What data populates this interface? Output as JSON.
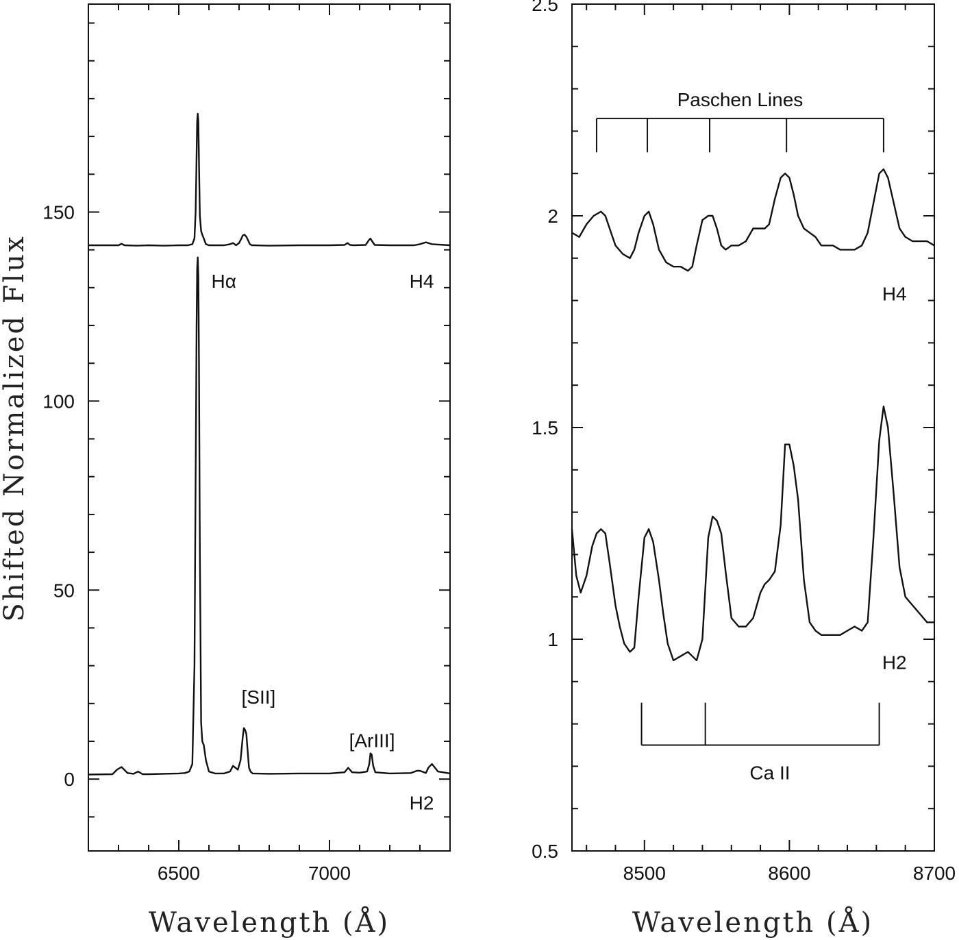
{
  "chart_data": [
    {
      "type": "line",
      "panel": "left",
      "ylabel": "Shifted Normalized Flux",
      "xlabel": "Wavelength (Å)",
      "xlim": [
        6200,
        7400
      ],
      "ylim": [
        -19,
        205
      ],
      "xticks": [
        6500,
        7000
      ],
      "xtick_labels": [
        "6500",
        "7000"
      ],
      "yticks": [
        0,
        50,
        100,
        150
      ],
      "ytick_labels": [
        "0",
        "50",
        "100",
        "150"
      ],
      "series": [
        {
          "name": "H4",
          "label": "H4",
          "x": [
            6200,
            6300,
            6310,
            6320,
            6360,
            6400,
            6450,
            6500,
            6530,
            6545,
            6552,
            6556,
            6559,
            6561,
            6563,
            6565,
            6567,
            6570,
            6574,
            6578,
            6583,
            6590,
            6600,
            6650,
            6670,
            6680,
            6690,
            6700,
            6708,
            6712,
            6718,
            6724,
            6730,
            6736,
            6742,
            6750,
            6800,
            6900,
            7000,
            7050,
            7060,
            7068,
            7080,
            7120,
            7130,
            7136,
            7142,
            7150,
            7200,
            7280,
            7300,
            7320,
            7340,
            7400
          ],
          "y": [
            141.2,
            141.2,
            141.6,
            141.2,
            141.1,
            141.2,
            141.1,
            141.2,
            141.2,
            141.5,
            143,
            150,
            165,
            174,
            176,
            174,
            163,
            149,
            145,
            144,
            143,
            141.5,
            141.2,
            141.2,
            141.5,
            141.8,
            141.2,
            141.8,
            143,
            143.8,
            144,
            143.5,
            142.5,
            141.5,
            141.2,
            141.2,
            141.1,
            141.2,
            141.2,
            141.3,
            141.8,
            141.3,
            141.2,
            141.3,
            142.5,
            143,
            142.2,
            141.3,
            141.2,
            141.2,
            141.5,
            142,
            141.5,
            141.2
          ]
        },
        {
          "name": "H2",
          "label": "H2",
          "x": [
            6200,
            6280,
            6295,
            6310,
            6330,
            6350,
            6365,
            6380,
            6400,
            6450,
            6500,
            6520,
            6535,
            6545,
            6552,
            6556,
            6559,
            6561,
            6563,
            6565,
            6567,
            6570,
            6574,
            6578,
            6583,
            6590,
            6600,
            6620,
            6650,
            6670,
            6680,
            6688,
            6696,
            6705,
            6712,
            6716,
            6720,
            6724,
            6728,
            6733,
            6738,
            6745,
            6800,
            6900,
            7000,
            7050,
            7062,
            7075,
            7100,
            7125,
            7132,
            7136,
            7140,
            7145,
            7152,
            7200,
            7270,
            7290,
            7300,
            7320,
            7328,
            7340,
            7360,
            7400
          ],
          "y": [
            1.2,
            1.3,
            2.5,
            3.2,
            1.6,
            1.4,
            2,
            1.3,
            1.3,
            1.4,
            1.5,
            1.6,
            2,
            4,
            30,
            80,
            120,
            135,
            138,
            133,
            110,
            60,
            15,
            10,
            9,
            5,
            2,
            1.5,
            1.5,
            2,
            3.5,
            3,
            2.5,
            5,
            11,
            13.5,
            13,
            12,
            8,
            3,
            2,
            1.5,
            1.4,
            1.5,
            1.5,
            1.8,
            3,
            1.8,
            1.7,
            2,
            4,
            6.8,
            6.5,
            3.5,
            1.8,
            1.5,
            1.6,
            2.2,
            2.2,
            1.6,
            3,
            4,
            2,
            1.5
          ]
        }
      ],
      "annotations": [
        {
          "text": "Hα",
          "x": 6608,
          "y": 130
        },
        {
          "text": "[SII]",
          "x": 6708,
          "y": 20
        },
        {
          "text": "[ArIII]",
          "x": 7065,
          "y": 8.5
        },
        {
          "text": "H4",
          "x": 7265,
          "y": 130
        },
        {
          "text": "H2",
          "x": 7265,
          "y": -8
        }
      ]
    },
    {
      "type": "line",
      "panel": "right",
      "xlabel": "Wavelength (Å)",
      "xlim": [
        8450,
        8700
      ],
      "ylim": [
        0.5,
        2.5
      ],
      "xticks": [
        8500,
        8600,
        8700
      ],
      "xtick_labels": [
        "8500",
        "8600",
        "8700"
      ],
      "yticks": [
        0.5,
        1,
        1.5,
        2,
        2.5
      ],
      "ytick_labels": [
        "0.5",
        "1",
        "1.5",
        "2",
        "2.5"
      ],
      "series": [
        {
          "name": "H4",
          "label": "H4",
          "x": [
            8450,
            8455,
            8460,
            8465,
            8470,
            8473,
            8477,
            8480,
            8485,
            8490,
            8493,
            8496,
            8500,
            8503,
            8506,
            8510,
            8515,
            8520,
            8525,
            8530,
            8533,
            8536,
            8540,
            8544,
            8547,
            8550,
            8553,
            8556,
            8560,
            8565,
            8570,
            8575,
            8580,
            8583,
            8586,
            8590,
            8594,
            8597,
            8600,
            8603,
            8606,
            8610,
            8614,
            8618,
            8622,
            8626,
            8630,
            8635,
            8640,
            8645,
            8650,
            8654,
            8658,
            8662,
            8665,
            8668,
            8672,
            8676,
            8680,
            8685,
            8690,
            8695,
            8700
          ],
          "y": [
            1.96,
            1.95,
            1.98,
            2,
            2.01,
            2,
            1.96,
            1.93,
            1.91,
            1.9,
            1.92,
            1.96,
            2,
            2.01,
            1.98,
            1.92,
            1.89,
            1.88,
            1.88,
            1.87,
            1.88,
            1.93,
            1.99,
            2,
            2,
            1.97,
            1.93,
            1.92,
            1.93,
            1.93,
            1.94,
            1.97,
            1.97,
            1.97,
            1.98,
            2.04,
            2.09,
            2.1,
            2.09,
            2.05,
            2,
            1.97,
            1.96,
            1.95,
            1.93,
            1.93,
            1.93,
            1.92,
            1.92,
            1.92,
            1.93,
            1.96,
            2.03,
            2.1,
            2.11,
            2.09,
            2.03,
            1.97,
            1.95,
            1.94,
            1.94,
            1.94,
            1.93
          ]
        },
        {
          "name": "H2",
          "label": "H2",
          "x": [
            8450,
            8453,
            8456,
            8460,
            8464,
            8467,
            8470,
            8473,
            8476,
            8480,
            8483,
            8486,
            8490,
            8493,
            8496,
            8500,
            8503,
            8506,
            8510,
            8513,
            8516,
            8520,
            8525,
            8530,
            8533,
            8536,
            8540,
            8544,
            8547,
            8550,
            8553,
            8556,
            8560,
            8565,
            8570,
            8575,
            8580,
            8583,
            8586,
            8590,
            8594,
            8597,
            8600,
            8603,
            8606,
            8610,
            8614,
            8618,
            8622,
            8626,
            8630,
            8635,
            8640,
            8645,
            8650,
            8654,
            8658,
            8662,
            8665,
            8668,
            8672,
            8676,
            8680,
            8685,
            8690,
            8695,
            8700
          ],
          "y": [
            1.26,
            1.15,
            1.11,
            1.15,
            1.22,
            1.25,
            1.26,
            1.25,
            1.18,
            1.08,
            1.03,
            0.99,
            0.97,
            0.98,
            1.1,
            1.24,
            1.26,
            1.23,
            1.14,
            1.06,
            0.99,
            0.95,
            0.96,
            0.97,
            0.96,
            0.95,
            1,
            1.24,
            1.29,
            1.28,
            1.25,
            1.16,
            1.05,
            1.03,
            1.03,
            1.05,
            1.11,
            1.13,
            1.14,
            1.16,
            1.27,
            1.46,
            1.46,
            1.41,
            1.33,
            1.14,
            1.04,
            1.02,
            1.01,
            1.01,
            1.01,
            1.01,
            1.02,
            1.03,
            1.02,
            1.04,
            1.24,
            1.47,
            1.55,
            1.5,
            1.34,
            1.17,
            1.1,
            1.08,
            1.06,
            1.04,
            1.04
          ]
        }
      ],
      "paschen_lines": {
        "label": "Paschen Lines",
        "x": [
          8467,
          8502,
          8545,
          8598,
          8665
        ],
        "bar_y": 2.23,
        "tick_bottom_y": 2.15
      },
      "ca_ii_lines": {
        "label": "Ca II",
        "x": [
          8498,
          8542,
          8662
        ],
        "bar_y": 0.75,
        "tick_top_y": 0.85
      },
      "annotations": [
        {
          "text": "H4",
          "x": 8664,
          "y": 1.8
        },
        {
          "text": "H2",
          "x": 8664,
          "y": 0.93
        }
      ]
    }
  ]
}
